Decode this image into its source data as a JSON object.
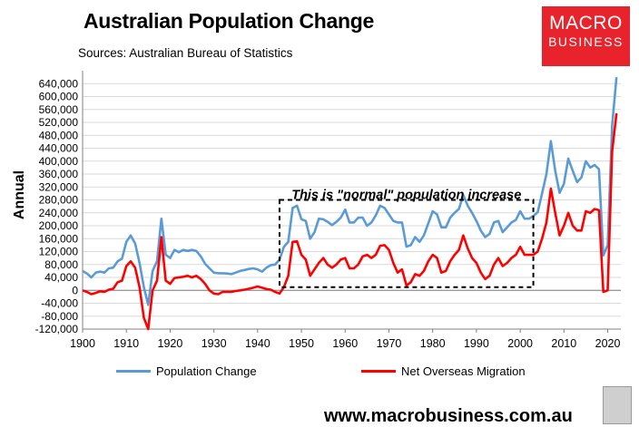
{
  "header": {
    "title": "Australian Population Change",
    "subtitle": "Sources: Australian Bureau of Statistics"
  },
  "logo": {
    "line1": "MACRO",
    "line2": "BUSINESS",
    "color": "#e8232b"
  },
  "footer": {
    "website": "www.macrobusiness.com.au"
  },
  "chart_data": {
    "type": "line",
    "title": "Australian Population Change",
    "subtitle": "Sources: Australian Bureau of Statistics",
    "xlabel": "",
    "ylabel": "Annual",
    "xlim": [
      1900,
      2023
    ],
    "ylim": [
      -120000,
      680000
    ],
    "yticks": [
      -120000,
      -80000,
      -40000,
      0,
      40000,
      80000,
      120000,
      160000,
      200000,
      240000,
      280000,
      320000,
      360000,
      400000,
      440000,
      480000,
      520000,
      560000,
      600000,
      640000
    ],
    "ytick_labels": [
      "-120,000",
      "-80,000",
      "-40,000",
      "0",
      "40,000",
      "80,000",
      "120,000",
      "160,000",
      "200,000",
      "240,000",
      "280,000",
      "320,000",
      "360,000",
      "400,000",
      "440,000",
      "480,000",
      "520,000",
      "560,000",
      "600,000",
      "640,000"
    ],
    "xticks": [
      1900,
      1910,
      1920,
      1930,
      1940,
      1950,
      1960,
      1970,
      1980,
      1990,
      2000,
      2010,
      2020
    ],
    "grid": true,
    "legend_position": "bottom",
    "annotation": {
      "text": "This is \"normal\" population increase",
      "x_range": [
        1945,
        2003
      ],
      "y_range": [
        10000,
        280000
      ]
    },
    "series": [
      {
        "name": "Population Change",
        "color": "#5b9bd5",
        "x": [
          1900,
          1901,
          1902,
          1903,
          1904,
          1905,
          1906,
          1907,
          1908,
          1909,
          1910,
          1911,
          1912,
          1913,
          1914,
          1915,
          1916,
          1917,
          1918,
          1919,
          1920,
          1921,
          1922,
          1923,
          1924,
          1925,
          1926,
          1927,
          1928,
          1929,
          1930,
          1931,
          1932,
          1933,
          1934,
          1935,
          1936,
          1937,
          1938,
          1939,
          1940,
          1941,
          1942,
          1943,
          1944,
          1945,
          1946,
          1947,
          1948,
          1949,
          1950,
          1951,
          1952,
          1953,
          1954,
          1955,
          1956,
          1957,
          1958,
          1959,
          1960,
          1961,
          1962,
          1963,
          1964,
          1965,
          1966,
          1967,
          1968,
          1969,
          1970,
          1971,
          1972,
          1973,
          1974,
          1975,
          1976,
          1977,
          1978,
          1979,
          1980,
          1981,
          1982,
          1983,
          1984,
          1985,
          1986,
          1987,
          1988,
          1989,
          1990,
          1991,
          1992,
          1993,
          1994,
          1995,
          1996,
          1997,
          1998,
          1999,
          2000,
          2001,
          2002,
          2003,
          2004,
          2005,
          2006,
          2007,
          2008,
          2009,
          2010,
          2011,
          2012,
          2013,
          2014,
          2015,
          2016,
          2017,
          2018,
          2019,
          2020,
          2021,
          2022
        ],
        "values": [
          60000,
          52000,
          40000,
          55000,
          58000,
          55000,
          68000,
          70000,
          90000,
          98000,
          150000,
          170000,
          145000,
          85000,
          10000,
          -45000,
          60000,
          90000,
          222000,
          110000,
          100000,
          125000,
          118000,
          125000,
          122000,
          125000,
          122000,
          105000,
          82000,
          68000,
          55000,
          53000,
          53000,
          52000,
          50000,
          55000,
          60000,
          63000,
          66000,
          68000,
          65000,
          58000,
          70000,
          78000,
          80000,
          95000,
          135000,
          150000,
          255000,
          262000,
          220000,
          215000,
          160000,
          180000,
          222000,
          220000,
          212000,
          202000,
          212000,
          225000,
          250000,
          210000,
          210000,
          225000,
          225000,
          200000,
          210000,
          232000,
          262000,
          255000,
          235000,
          215000,
          210000,
          210000,
          135000,
          140000,
          165000,
          150000,
          170000,
          208000,
          245000,
          235000,
          195000,
          195000,
          225000,
          240000,
          252000,
          295000,
          262000,
          240000,
          215000,
          185000,
          165000,
          175000,
          210000,
          215000,
          180000,
          195000,
          210000,
          218000,
          245000,
          222000,
          222000,
          230000,
          242000,
          300000,
          360000,
          462000,
          370000,
          302000,
          330000,
          408000,
          370000,
          335000,
          350000,
          400000,
          380000,
          388000,
          375000,
          108000,
          140000,
          510000,
          660000
        ]
      },
      {
        "name": "Net Overseas Migration",
        "color": "#ff0000",
        "x": [
          1900,
          1901,
          1902,
          1903,
          1904,
          1905,
          1906,
          1907,
          1908,
          1909,
          1910,
          1911,
          1912,
          1913,
          1914,
          1915,
          1916,
          1917,
          1918,
          1919,
          1920,
          1921,
          1922,
          1923,
          1924,
          1925,
          1926,
          1927,
          1928,
          1929,
          1930,
          1931,
          1932,
          1933,
          1934,
          1935,
          1936,
          1937,
          1938,
          1939,
          1940,
          1941,
          1942,
          1943,
          1944,
          1945,
          1946,
          1947,
          1948,
          1949,
          1950,
          1951,
          1952,
          1953,
          1954,
          1955,
          1956,
          1957,
          1958,
          1959,
          1960,
          1961,
          1962,
          1963,
          1964,
          1965,
          1966,
          1967,
          1968,
          1969,
          1970,
          1971,
          1972,
          1973,
          1974,
          1975,
          1976,
          1977,
          1978,
          1979,
          1980,
          1981,
          1982,
          1983,
          1984,
          1985,
          1986,
          1987,
          1988,
          1989,
          1990,
          1991,
          1992,
          1993,
          1994,
          1995,
          1996,
          1997,
          1998,
          1999,
          2000,
          2001,
          2002,
          2003,
          2004,
          2005,
          2006,
          2007,
          2008,
          2009,
          2010,
          2011,
          2012,
          2013,
          2014,
          2015,
          2016,
          2017,
          2018,
          2019,
          2020,
          2021,
          2022
        ],
        "values": [
          0,
          -5000,
          -12000,
          -8000,
          -3000,
          -5000,
          2000,
          5000,
          25000,
          30000,
          75000,
          90000,
          70000,
          10000,
          -85000,
          -120000,
          0,
          30000,
          165000,
          30000,
          20000,
          38000,
          40000,
          42000,
          45000,
          40000,
          45000,
          35000,
          20000,
          0,
          -10000,
          -12000,
          -5000,
          -5000,
          -5000,
          -2000,
          0,
          2000,
          5000,
          8000,
          12000,
          8000,
          4000,
          2000,
          -5000,
          -10000,
          10000,
          45000,
          150000,
          152000,
          110000,
          95000,
          45000,
          65000,
          85000,
          100000,
          80000,
          70000,
          80000,
          95000,
          100000,
          68000,
          68000,
          80000,
          105000,
          110000,
          100000,
          110000,
          138000,
          140000,
          125000,
          85000,
          55000,
          65000,
          15000,
          25000,
          50000,
          45000,
          60000,
          90000,
          110000,
          100000,
          55000,
          60000,
          90000,
          110000,
          125000,
          170000,
          130000,
          100000,
          85000,
          55000,
          35000,
          45000,
          80000,
          100000,
          75000,
          85000,
          100000,
          110000,
          135000,
          110000,
          110000,
          110000,
          120000,
          160000,
          210000,
          315000,
          240000,
          170000,
          200000,
          240000,
          200000,
          185000,
          185000,
          245000,
          240000,
          252000,
          248000,
          -5000,
          0,
          430000,
          548000
        ]
      }
    ]
  }
}
